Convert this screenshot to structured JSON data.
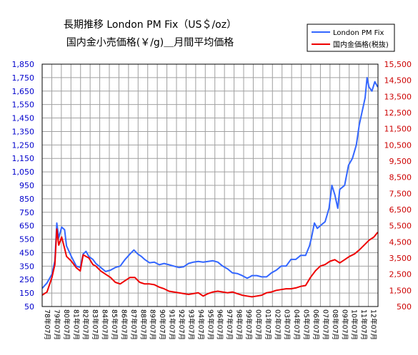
{
  "chart_data": {
    "type": "line",
    "title_lines": [
      "長期推移 London PM Fix（US＄/oz）",
      "国内金小売価格(￥/g)＿月間平均価格"
    ],
    "x_labels": [
      "78年07月",
      "79年07月",
      "80年07月",
      "81年07月",
      "82年07月",
      "83年07月",
      "84年07月",
      "85年07月",
      "86年07月",
      "87年07月",
      "88年07月",
      "89年07月",
      "90年07月",
      "91年07月",
      "92年07月",
      "93年07月",
      "94年07月",
      "95年07月",
      "96年07月",
      "97年07月",
      "98年07月",
      "99年07月",
      "00年07月",
      "01年07月",
      "02年07月",
      "03年07月",
      "04年07月",
      "05年07月",
      "06年07月",
      "07年07月",
      "08年07月",
      "09年07月",
      "10年07月",
      "11年07月",
      "12年07月"
    ],
    "y_left": {
      "ticks": [
        "1,850",
        "1,750",
        "1,650",
        "1,550",
        "1,450",
        "1,350",
        "1,250",
        "1,150",
        "1,050",
        "950",
        "850",
        "750",
        "650",
        "550",
        "450",
        "350",
        "250",
        "150",
        "50"
      ],
      "min": 50,
      "max": 1850,
      "color": "#0000cc"
    },
    "y_right": {
      "ticks": [
        "15,500",
        "14,500",
        "13,500",
        "12,500",
        "11,500",
        "10,500",
        "9,500",
        "8,500",
        "7,500",
        "6,500",
        "5,500",
        "4,500",
        "3,500",
        "2,500",
        "1,500",
        "500"
      ],
      "min": 500,
      "max": 15500,
      "color": "#cc0000"
    },
    "grid": true,
    "legend_position": "top-right",
    "series": [
      {
        "name": "London PM Fix",
        "axis": "left",
        "color": "#3366ff",
        "x": [
          1978.5,
          1979.0,
          1979.5,
          1979.8,
          1980.0,
          1980.2,
          1980.5,
          1980.8,
          1981.0,
          1981.5,
          1982.0,
          1982.4,
          1982.7,
          1983.0,
          1983.3,
          1983.7,
          1984.0,
          1984.5,
          1985.0,
          1985.5,
          1986.0,
          1986.5,
          1987.0,
          1987.5,
          1987.9,
          1988.3,
          1988.7,
          1989.0,
          1989.5,
          1990.0,
          1990.5,
          1991.0,
          1991.5,
          1992.0,
          1992.5,
          1993.0,
          1993.5,
          1994.0,
          1994.5,
          1995.0,
          1995.5,
          1996.0,
          1996.5,
          1997.0,
          1997.5,
          1998.0,
          1998.5,
          1999.0,
          1999.5,
          1999.8,
          2000.0,
          2000.5,
          2001.0,
          2001.5,
          2002.0,
          2002.5,
          2003.0,
          2003.5,
          2004.0,
          2004.5,
          2005.0,
          2005.5,
          2005.9,
          2006.1,
          2006.4,
          2006.7,
          2007.0,
          2007.5,
          2007.9,
          2008.2,
          2008.5,
          2008.8,
          2009.0,
          2009.5,
          2009.9,
          2010.3,
          2010.7,
          2011.0,
          2011.3,
          2011.6,
          2011.8,
          2012.0,
          2012.3,
          2012.6,
          2012.9
        ],
        "values": [
          185,
          225,
          290,
          390,
          670,
          560,
          640,
          620,
          500,
          420,
          350,
          340,
          440,
          460,
          420,
          400,
          370,
          340,
          310,
          320,
          340,
          350,
          400,
          440,
          470,
          440,
          420,
          400,
          375,
          380,
          360,
          370,
          360,
          350,
          340,
          345,
          370,
          380,
          385,
          380,
          385,
          390,
          380,
          350,
          330,
          300,
          295,
          280,
          260,
          270,
          280,
          280,
          270,
          270,
          300,
          320,
          350,
          350,
          400,
          400,
          430,
          430,
          500,
          560,
          670,
          630,
          650,
          680,
          780,
          950,
          880,
          780,
          920,
          950,
          1100,
          1150,
          1250,
          1400,
          1500,
          1600,
          1750,
          1680,
          1650,
          1720,
          1680
        ]
      },
      {
        "name": "国内金価格(税抜)",
        "axis": "right",
        "color": "#ee0000",
        "x": [
          1978.5,
          1979.0,
          1979.5,
          1979.8,
          1980.0,
          1980.2,
          1980.5,
          1980.8,
          1981.0,
          1981.5,
          1982.0,
          1982.4,
          1982.7,
          1983.0,
          1983.3,
          1983.7,
          1984.0,
          1984.5,
          1985.0,
          1985.5,
          1986.0,
          1986.5,
          1987.0,
          1987.5,
          1988.0,
          1988.5,
          1989.0,
          1989.5,
          1990.0,
          1990.5,
          1991.0,
          1991.5,
          1992.0,
          1992.5,
          1993.0,
          1993.5,
          1994.0,
          1994.5,
          1995.0,
          1995.5,
          1996.0,
          1996.5,
          1997.0,
          1997.5,
          1998.0,
          1998.5,
          1999.0,
          1999.5,
          2000.0,
          2000.5,
          2001.0,
          2001.5,
          2002.0,
          2002.5,
          2003.0,
          2003.5,
          2004.0,
          2004.5,
          2005.0,
          2005.5,
          2006.0,
          2006.5,
          2007.0,
          2007.5,
          2008.0,
          2008.5,
          2009.0,
          2009.5,
          2010.0,
          2010.5,
          2011.0,
          2011.5,
          2012.0,
          2012.5,
          2012.9
        ],
        "values": [
          1200,
          1400,
          2300,
          3100,
          5300,
          4300,
          4800,
          4100,
          3600,
          3300,
          2900,
          2700,
          3700,
          3600,
          3500,
          3100,
          3000,
          2700,
          2500,
          2300,
          2000,
          1900,
          2100,
          2300,
          2300,
          2000,
          1900,
          1900,
          1850,
          1700,
          1600,
          1450,
          1400,
          1350,
          1300,
          1250,
          1300,
          1350,
          1150,
          1300,
          1400,
          1450,
          1400,
          1350,
          1400,
          1300,
          1200,
          1150,
          1100,
          1150,
          1200,
          1350,
          1400,
          1500,
          1550,
          1600,
          1600,
          1650,
          1750,
          1800,
          2300,
          2700,
          3000,
          3100,
          3300,
          3400,
          3200,
          3400,
          3600,
          3750,
          4000,
          4300,
          4600,
          4800,
          5100
        ]
      }
    ]
  }
}
